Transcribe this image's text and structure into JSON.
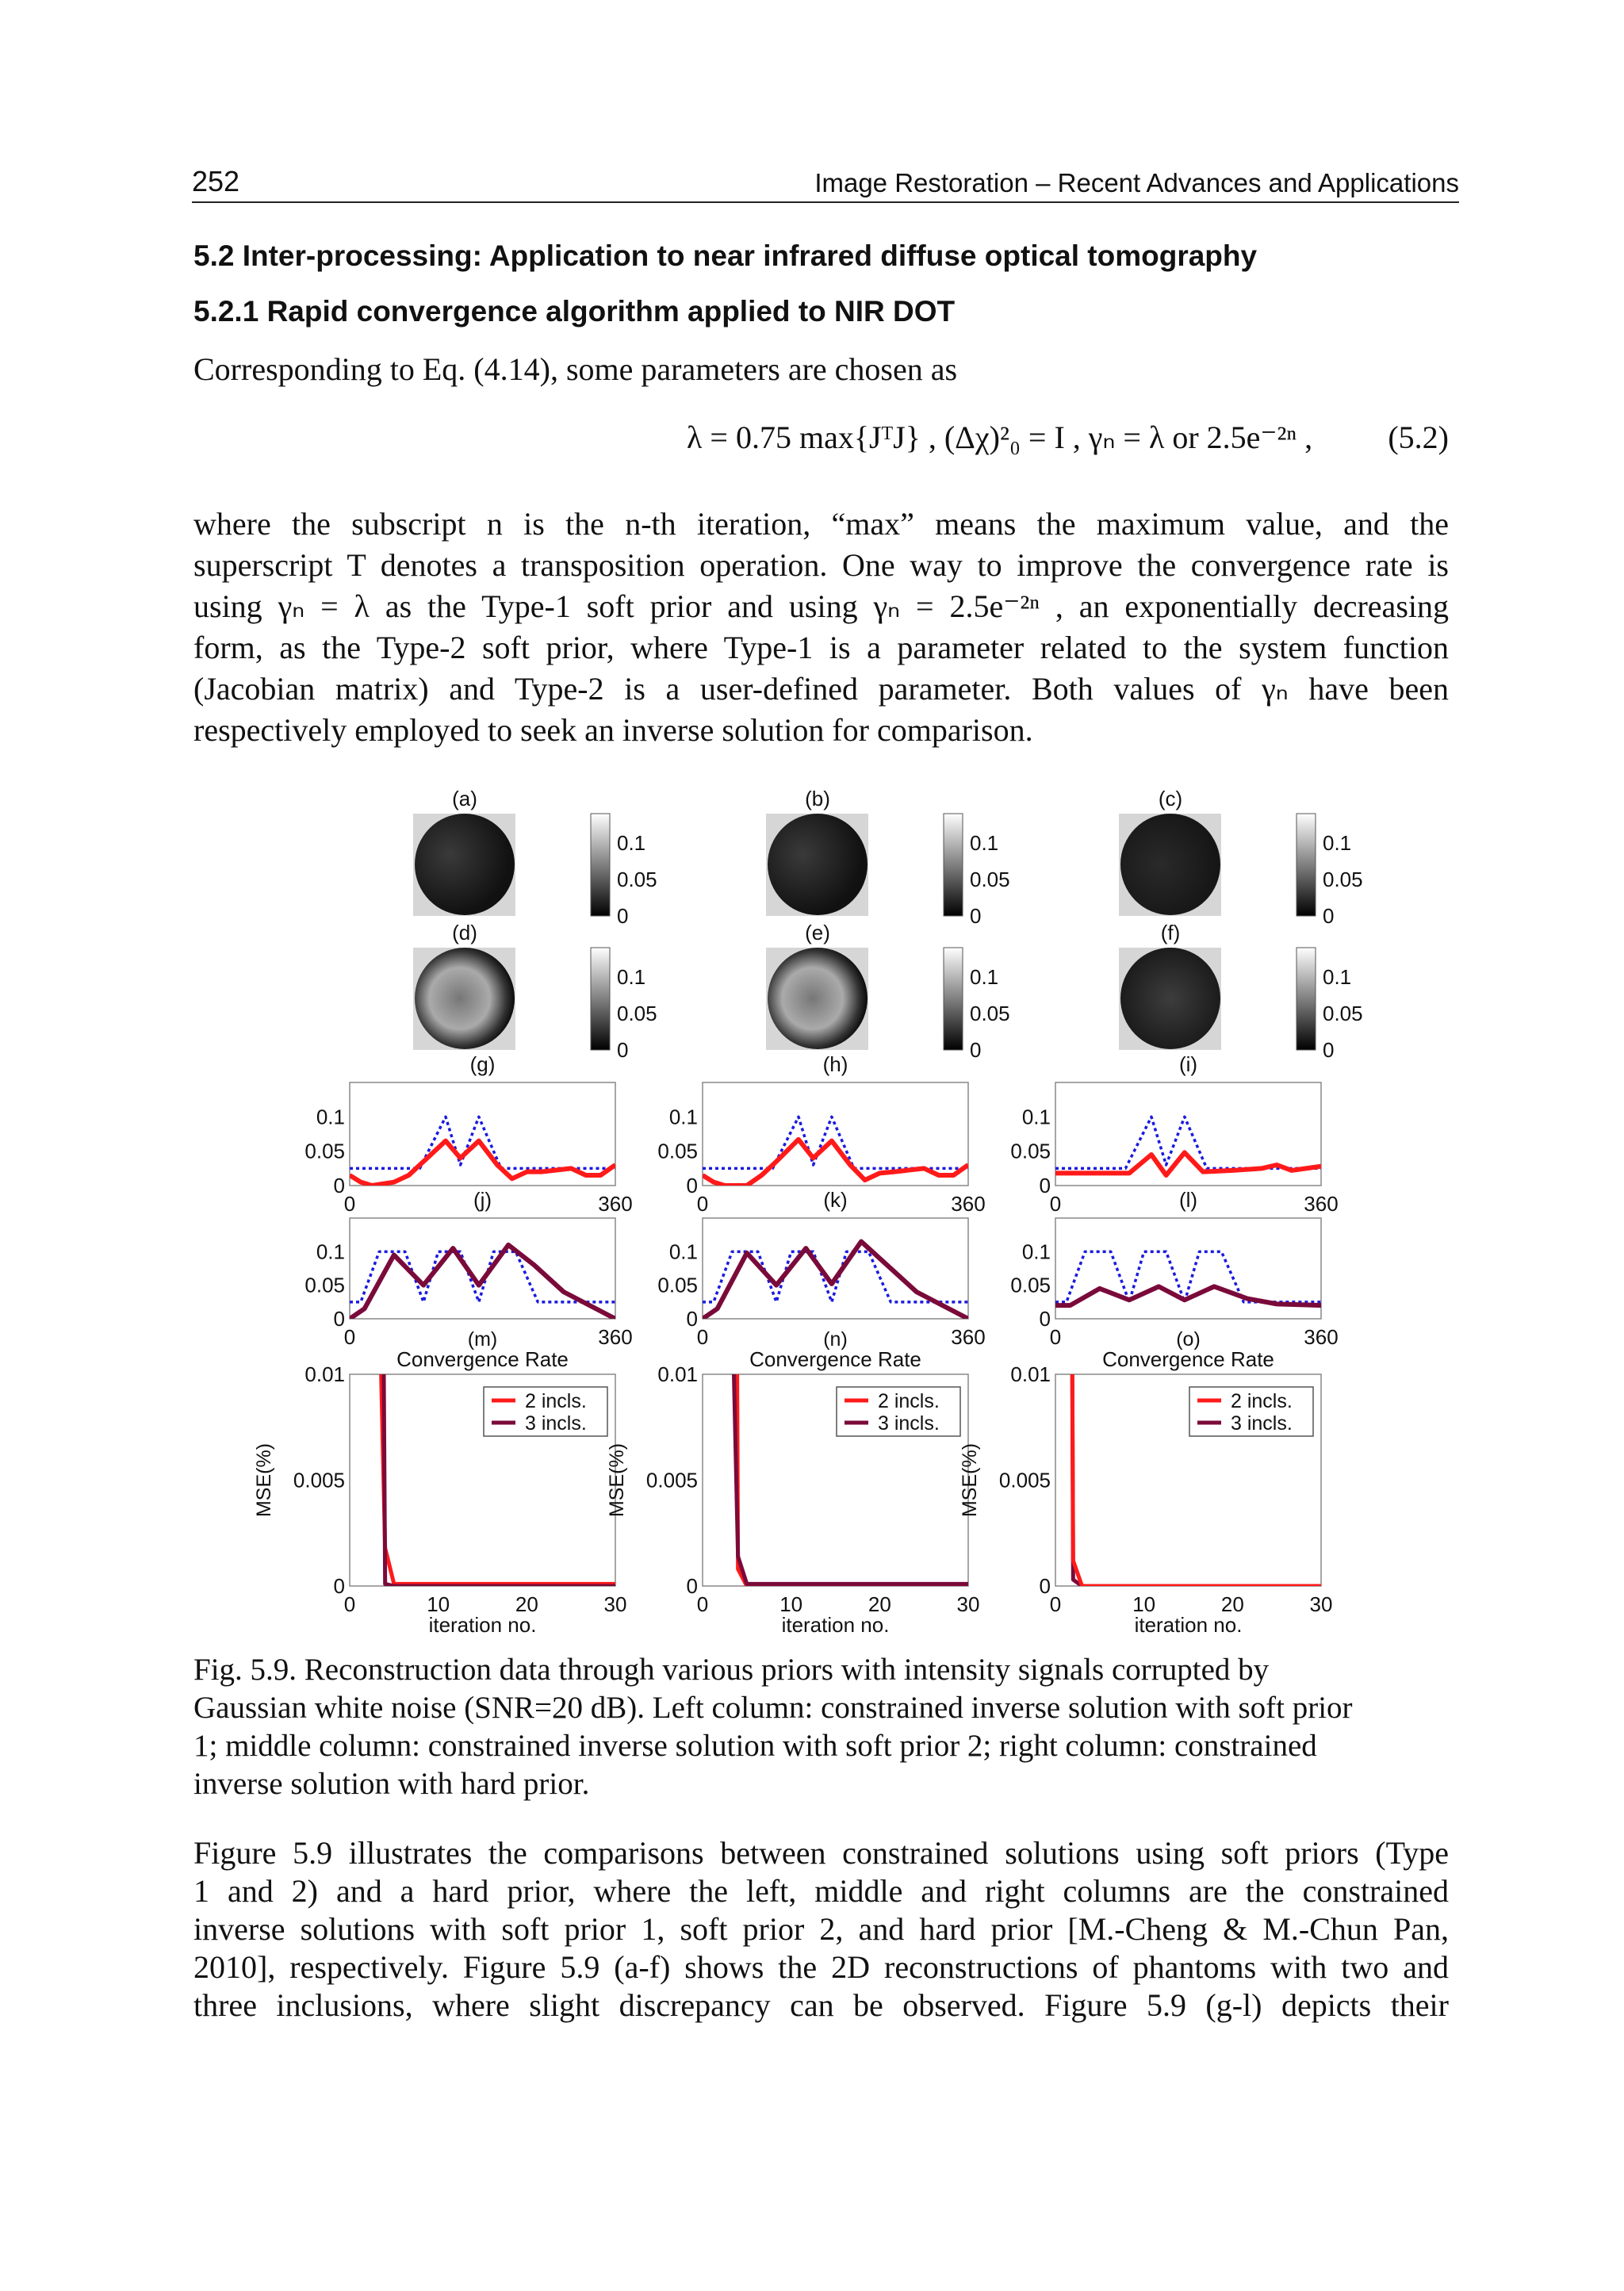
{
  "header": {
    "page_number": "252",
    "book_title": "Image Restoration – Recent Advances and Applications"
  },
  "section": {
    "heading": "5.2 Inter-processing: Application to near infrared diffuse optical tomography",
    "subheading": "5.2.1 Rapid convergence algorithm applied to NIR DOT",
    "intro": "Corresponding to Eq. (4.14), some parameters are chosen as"
  },
  "equation": {
    "body": "λ = 0.75 max{JᵀJ} ,  (Δχ)²₀ = I ,  γₙ = λ  or  2.5e⁻²ⁿ ,",
    "number": "(5.2)"
  },
  "paragraph1": [
    "where the subscript n is the n-th iteration, “max” means the maximum value, and the",
    "superscript T denotes a transposition operation. One way to improve the convergence rate is",
    "using γₙ = λ as the Type-1 soft prior and using γₙ = 2.5e⁻²ⁿ , an exponentially decreasing",
    "form, as the Type-2 soft prior, where Type-1 is a parameter related to the system function",
    "(Jacobian matrix) and Type-2 is a user-defined parameter. Both values of γₙ have been",
    "respectively employed to seek an inverse solution for comparison."
  ],
  "figure": {
    "image_labels": [
      "(a)",
      "(b)",
      "(c)",
      "(d)",
      "(e)",
      "(f)"
    ],
    "colorbar_ticks": [
      "0.1",
      "0.05",
      "0"
    ],
    "colors": {
      "true_profile": "#1a1adf",
      "two_inclusions": "#ff1a1a",
      "three_inclusions": "#7a0a3a"
    }
  },
  "chart_data": [
    {
      "type": "line",
      "label": "(g)",
      "xlim": [
        0,
        360
      ],
      "ylim": [
        0,
        0.15
      ],
      "xticks": [
        "0",
        "360"
      ],
      "yticks": [
        "0.1",
        "0.05",
        "0"
      ],
      "series": [
        {
          "style": "dotted",
          "color": "#1a1adf",
          "x": [
            0,
            95,
            130,
            150,
            175,
            205,
            360
          ],
          "y": [
            0.025,
            0.025,
            0.1,
            0.03,
            0.1,
            0.025,
            0.025
          ]
        },
        {
          "style": "solid",
          "color": "#ff1a1a",
          "x": [
            0,
            15,
            30,
            60,
            80,
            100,
            130,
            150,
            175,
            200,
            220,
            240,
            260,
            300,
            320,
            340,
            360
          ],
          "y": [
            0.015,
            0.005,
            0,
            0.005,
            0.015,
            0.035,
            0.065,
            0.04,
            0.065,
            0.03,
            0.01,
            0.02,
            0.02,
            0.025,
            0.015,
            0.015,
            0.03
          ]
        }
      ]
    },
    {
      "type": "line",
      "label": "(h)",
      "xlim": [
        0,
        360
      ],
      "ylim": [
        0,
        0.15
      ],
      "xticks": [
        "0",
        "360"
      ],
      "yticks": [
        "0.1",
        "0.05",
        "0"
      ],
      "series": [
        {
          "style": "dotted",
          "color": "#1a1adf",
          "x": [
            0,
            95,
            130,
            150,
            175,
            205,
            360
          ],
          "y": [
            0.025,
            0.025,
            0.1,
            0.03,
            0.1,
            0.025,
            0.025
          ]
        },
        {
          "style": "solid",
          "color": "#ff1a1a",
          "x": [
            0,
            15,
            30,
            60,
            80,
            100,
            130,
            150,
            175,
            200,
            220,
            240,
            260,
            300,
            320,
            340,
            360
          ],
          "y": [
            0.015,
            0.005,
            0,
            0,
            0.015,
            0.035,
            0.067,
            0.04,
            0.065,
            0.03,
            0.008,
            0.018,
            0.02,
            0.025,
            0.015,
            0.015,
            0.03
          ]
        }
      ]
    },
    {
      "type": "line",
      "label": "(i)",
      "xlim": [
        0,
        360
      ],
      "ylim": [
        0,
        0.15
      ],
      "xticks": [
        "0",
        "360"
      ],
      "yticks": [
        "0.1",
        "0.05",
        "0"
      ],
      "series": [
        {
          "style": "dotted",
          "color": "#1a1adf",
          "x": [
            0,
            95,
            130,
            150,
            175,
            205,
            360
          ],
          "y": [
            0.025,
            0.025,
            0.1,
            0.03,
            0.1,
            0.025,
            0.025
          ]
        },
        {
          "style": "solid",
          "color": "#ff1a1a",
          "x": [
            0,
            50,
            100,
            130,
            150,
            175,
            200,
            240,
            280,
            300,
            320,
            360
          ],
          "y": [
            0.018,
            0.018,
            0.018,
            0.045,
            0.015,
            0.048,
            0.02,
            0.022,
            0.025,
            0.03,
            0.022,
            0.028
          ]
        }
      ]
    },
    {
      "type": "line",
      "label": "(j)",
      "xlim": [
        0,
        360
      ],
      "ylim": [
        0,
        0.15
      ],
      "xticks": [
        "0",
        "360"
      ],
      "yticks": [
        "0.1",
        "0.05",
        "0"
      ],
      "series": [
        {
          "style": "dotted",
          "color": "#1a1adf",
          "x": [
            0,
            15,
            40,
            75,
            100,
            120,
            150,
            175,
            195,
            225,
            255,
            360
          ],
          "y": [
            0.025,
            0.025,
            0.1,
            0.1,
            0.025,
            0.1,
            0.1,
            0.025,
            0.1,
            0.1,
            0.025,
            0.025
          ]
        },
        {
          "style": "solid",
          "color": "#7a0a3a",
          "x": [
            0,
            20,
            60,
            100,
            140,
            175,
            215,
            250,
            290,
            360
          ],
          "y": [
            0,
            0.015,
            0.095,
            0.05,
            0.105,
            0.05,
            0.11,
            0.08,
            0.04,
            0
          ]
        }
      ]
    },
    {
      "type": "line",
      "label": "(k)",
      "xlim": [
        0,
        360
      ],
      "ylim": [
        0,
        0.15
      ],
      "xticks": [
        "0",
        "360"
      ],
      "yticks": [
        "0.1",
        "0.05",
        "0"
      ],
      "series": [
        {
          "style": "dotted",
          "color": "#1a1adf",
          "x": [
            0,
            15,
            40,
            75,
            100,
            120,
            150,
            175,
            195,
            225,
            255,
            360
          ],
          "y": [
            0.025,
            0.025,
            0.1,
            0.1,
            0.025,
            0.1,
            0.1,
            0.025,
            0.1,
            0.1,
            0.025,
            0.025
          ]
        },
        {
          "style": "solid",
          "color": "#7a0a3a",
          "x": [
            0,
            20,
            60,
            100,
            140,
            175,
            215,
            250,
            290,
            360
          ],
          "y": [
            0,
            0.015,
            0.098,
            0.05,
            0.105,
            0.052,
            0.115,
            0.08,
            0.04,
            0
          ]
        }
      ]
    },
    {
      "type": "line",
      "label": "(l)",
      "xlim": [
        0,
        360
      ],
      "ylim": [
        0,
        0.15
      ],
      "xticks": [
        "0",
        "360"
      ],
      "yticks": [
        "0.1",
        "0.05",
        "0"
      ],
      "series": [
        {
          "style": "dotted",
          "color": "#1a1adf",
          "x": [
            0,
            15,
            40,
            75,
            100,
            120,
            150,
            175,
            195,
            225,
            255,
            360
          ],
          "y": [
            0.025,
            0.025,
            0.1,
            0.1,
            0.025,
            0.1,
            0.1,
            0.025,
            0.1,
            0.1,
            0.025,
            0.025
          ]
        },
        {
          "style": "solid",
          "color": "#7a0a3a",
          "x": [
            0,
            20,
            60,
            100,
            140,
            175,
            215,
            260,
            300,
            360
          ],
          "y": [
            0.02,
            0.02,
            0.045,
            0.028,
            0.048,
            0.028,
            0.048,
            0.03,
            0.022,
            0.02
          ]
        }
      ]
    },
    {
      "type": "line",
      "label": "(m)",
      "title": "Convergence Rate",
      "xlabel": "iteration no.",
      "ylabel": "MSE(%)",
      "xlim": [
        0,
        30
      ],
      "ylim": [
        0,
        0.01
      ],
      "xticks": [
        "0",
        "10",
        "20",
        "30"
      ],
      "yticks": [
        "0.01",
        "0.005",
        "0"
      ],
      "legend": "top-right",
      "series": [
        {
          "name": "2 incls.",
          "color": "#ff1a1a",
          "x": [
            3,
            4,
            5,
            30
          ],
          "y": [
            0.02,
            0.0018,
            0.0001,
            0.0001
          ]
        },
        {
          "name": "3 incls.",
          "color": "#7a0a3a",
          "x": [
            3.7,
            4,
            5,
            30
          ],
          "y": [
            0.02,
            0.0001,
            0,
            0
          ]
        }
      ]
    },
    {
      "type": "line",
      "label": "(n)",
      "title": "Convergence Rate",
      "xlabel": "iteration no.",
      "ylabel": "MSE(%)",
      "xlim": [
        0,
        30
      ],
      "ylim": [
        0,
        0.01
      ],
      "xticks": [
        "0",
        "10",
        "20",
        "30"
      ],
      "yticks": [
        "0.01",
        "0.005",
        "0"
      ],
      "legend": "top-right",
      "series": [
        {
          "name": "2 incls.",
          "color": "#ff1a1a",
          "x": [
            3.8,
            4,
            5,
            30
          ],
          "y": [
            0.02,
            0.0008,
            0,
            0
          ]
        },
        {
          "name": "3 incls.",
          "color": "#7a0a3a",
          "x": [
            3,
            4,
            5,
            30
          ],
          "y": [
            0.02,
            0.0014,
            0.0001,
            0.0001
          ]
        }
      ]
    },
    {
      "type": "line",
      "label": "(o)",
      "title": "Convergence Rate",
      "xlabel": "iteration no.",
      "ylabel": "MSE(%)",
      "xlim": [
        0,
        30
      ],
      "ylim": [
        0,
        0.01
      ],
      "xticks": [
        "0",
        "10",
        "20",
        "30"
      ],
      "yticks": [
        "0.01",
        "0.005",
        "0"
      ],
      "legend": "top-right",
      "series": [
        {
          "name": "3 incls.",
          "color": "#7a0a3a",
          "x": [
            1.8,
            2,
            3,
            30
          ],
          "y": [
            0.02,
            0.0003,
            0,
            0
          ]
        },
        {
          "name": "2 incls.",
          "color": "#ff1a1a",
          "x": [
            1.8,
            2,
            3,
            30
          ],
          "y": [
            0.02,
            0.0012,
            0,
            0
          ]
        }
      ]
    }
  ],
  "caption": [
    "Fig. 5.9. Reconstruction data through various priors with intensity signals corrupted by",
    "Gaussian white noise (SNR=20 dB). Left column: constrained inverse solution with soft prior",
    "1; middle column: constrained inverse solution with soft prior 2; right column: constrained",
    "inverse solution with hard prior."
  ],
  "paragraph2": [
    "Figure 5.9 illustrates the comparisons between constrained solutions using soft priors (Type",
    "1 and 2) and a hard prior, where the left, middle and right columns are the constrained",
    "inverse solutions with soft prior 1, soft prior 2, and hard prior [M.-Cheng & M.-Chun Pan,",
    "2010], respectively. Figure 5.9 (a-f) shows the 2D reconstructions of phantoms with two and",
    "three inclusions, where slight discrepancy can be observed. Figure 5.9 (g-l) depicts their"
  ]
}
